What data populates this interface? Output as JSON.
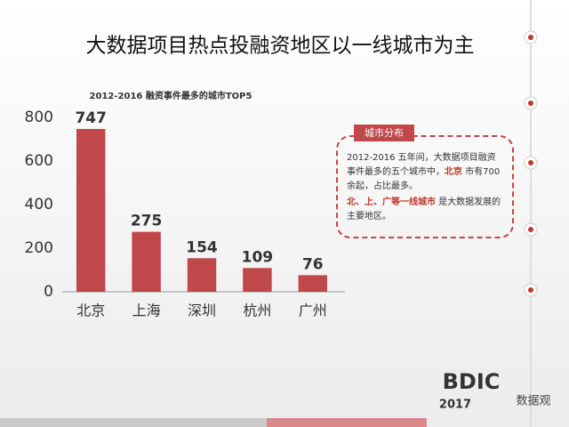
{
  "slide": {
    "title": "大数据项目热点投融资地区以一线城市为主",
    "callout": {
      "heading": "城市分布",
      "paragraph1": [
        "2012-2016 五年间，大数据项目融资事件最多的五个城市中，",
        "北京",
        " 市有700余起，占比最多。"
      ],
      "paragraph2": [
        "北、上、广等一线城市",
        " 是大数据发展的主要地区。"
      ]
    },
    "logo": "BDIC",
    "year": "2017",
    "watermark": "数据观"
  },
  "chart_data": {
    "type": "bar",
    "title": "2012-2016 融资事件最多的城市TOP5",
    "categories": [
      "北京",
      "上海",
      "深圳",
      "杭州",
      "广州"
    ],
    "values": [
      747,
      275,
      154,
      109,
      76
    ],
    "color": "#c0474a",
    "ylim": [
      0,
      800
    ],
    "yticks": [
      0,
      200,
      400,
      600,
      800
    ],
    "grid": false
  }
}
